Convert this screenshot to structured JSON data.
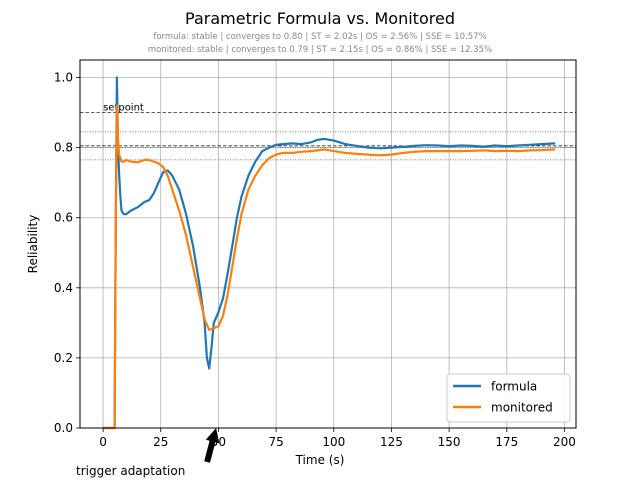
{
  "chart_data": {
    "type": "line",
    "title": "Parametric Formula vs. Monitored",
    "subtitle_lines": [
      "formula: stable | converges to 0.80 | ST = 2.02s | OS = 2.56% | SSE = 10.57%",
      "monitored: stable | converges to 0.79 | ST = 2.15s | OS = 0.86% | SSE = 12.35%"
    ],
    "xlabel": "Time (s)",
    "ylabel": "Reliability",
    "xlim": [
      -10,
      205
    ],
    "ylim": [
      0,
      1.05
    ],
    "xticks": [
      0,
      25,
      50,
      75,
      100,
      125,
      150,
      175,
      200
    ],
    "xtick_labels": [
      "0",
      "25",
      "50",
      "75",
      "100",
      "125",
      "150",
      "175",
      "200"
    ],
    "yticks": [
      0,
      0.2,
      0.4,
      0.6,
      0.8,
      1.0
    ],
    "ytick_labels": [
      "0.0",
      "0.2",
      "0.4",
      "0.6",
      "0.8",
      "1.0"
    ],
    "grid": true,
    "legend_position": "lower-right",
    "series": [
      {
        "name": "formula",
        "color": "#1f77b4",
        "x": [
          0,
          5,
          5.5,
          6,
          6.5,
          7,
          7.5,
          8,
          9,
          10,
          12,
          15,
          18,
          20,
          22,
          24,
          26,
          28,
          30,
          33,
          36,
          39,
          42,
          44,
          45,
          46,
          47,
          48,
          50,
          52,
          54,
          56,
          58,
          60,
          63,
          66,
          69,
          72,
          75,
          78,
          82,
          86,
          90,
          93,
          96,
          100,
          105,
          110,
          115,
          120,
          125,
          130,
          135,
          140,
          145,
          150,
          155,
          160,
          165,
          170,
          175,
          180,
          185,
          190,
          196
        ],
        "y": [
          0,
          0,
          0.6,
          1.0,
          0.8,
          0.72,
          0.66,
          0.62,
          0.61,
          0.61,
          0.62,
          0.63,
          0.645,
          0.65,
          0.67,
          0.7,
          0.73,
          0.735,
          0.72,
          0.68,
          0.61,
          0.52,
          0.4,
          0.3,
          0.2,
          0.17,
          0.23,
          0.3,
          0.33,
          0.37,
          0.44,
          0.52,
          0.6,
          0.66,
          0.72,
          0.76,
          0.79,
          0.8,
          0.808,
          0.81,
          0.812,
          0.81,
          0.815,
          0.822,
          0.825,
          0.82,
          0.81,
          0.805,
          0.8,
          0.798,
          0.8,
          0.802,
          0.805,
          0.807,
          0.806,
          0.804,
          0.806,
          0.805,
          0.803,
          0.806,
          0.804,
          0.806,
          0.808,
          0.81,
          0.812
        ]
      },
      {
        "name": "monitored",
        "color": "#ff7f0e",
        "x": [
          0,
          5,
          5.5,
          6,
          6.5,
          7,
          7.5,
          8,
          9,
          10,
          12,
          15,
          18,
          20,
          22,
          24,
          26,
          28,
          30,
          33,
          36,
          39,
          42,
          44,
          46,
          48,
          50,
          52,
          54,
          56,
          58,
          60,
          63,
          66,
          69,
          72,
          75,
          78,
          82,
          86,
          90,
          93,
          96,
          100,
          105,
          110,
          115,
          120,
          125,
          130,
          135,
          140,
          145,
          150,
          155,
          160,
          165,
          170,
          175,
          180,
          185,
          190,
          196
        ],
        "y": [
          0,
          0,
          0.6,
          0.92,
          0.82,
          0.78,
          0.77,
          0.76,
          0.76,
          0.765,
          0.76,
          0.758,
          0.765,
          0.765,
          0.76,
          0.755,
          0.745,
          0.72,
          0.68,
          0.62,
          0.55,
          0.46,
          0.37,
          0.31,
          0.28,
          0.285,
          0.29,
          0.32,
          0.38,
          0.46,
          0.54,
          0.61,
          0.68,
          0.72,
          0.75,
          0.77,
          0.78,
          0.785,
          0.785,
          0.788,
          0.79,
          0.792,
          0.795,
          0.79,
          0.785,
          0.782,
          0.78,
          0.778,
          0.78,
          0.785,
          0.788,
          0.79,
          0.79,
          0.79,
          0.79,
          0.791,
          0.792,
          0.79,
          0.791,
          0.79,
          0.792,
          0.793,
          0.795
        ]
      }
    ],
    "reference_lines": [
      {
        "y": 0.9,
        "style": "dashed",
        "label": "setpoint"
      },
      {
        "y": 0.845,
        "style": "dotted",
        "label": ""
      },
      {
        "y": 0.805,
        "style": "dashed",
        "label": ""
      },
      {
        "y": 0.8,
        "style": "dotted",
        "label": ""
      },
      {
        "y": 0.765,
        "style": "dotted",
        "label": ""
      }
    ],
    "annotation": {
      "text": "trigger adaptation",
      "arrow_target": {
        "x": 49,
        "y": 0
      }
    }
  }
}
